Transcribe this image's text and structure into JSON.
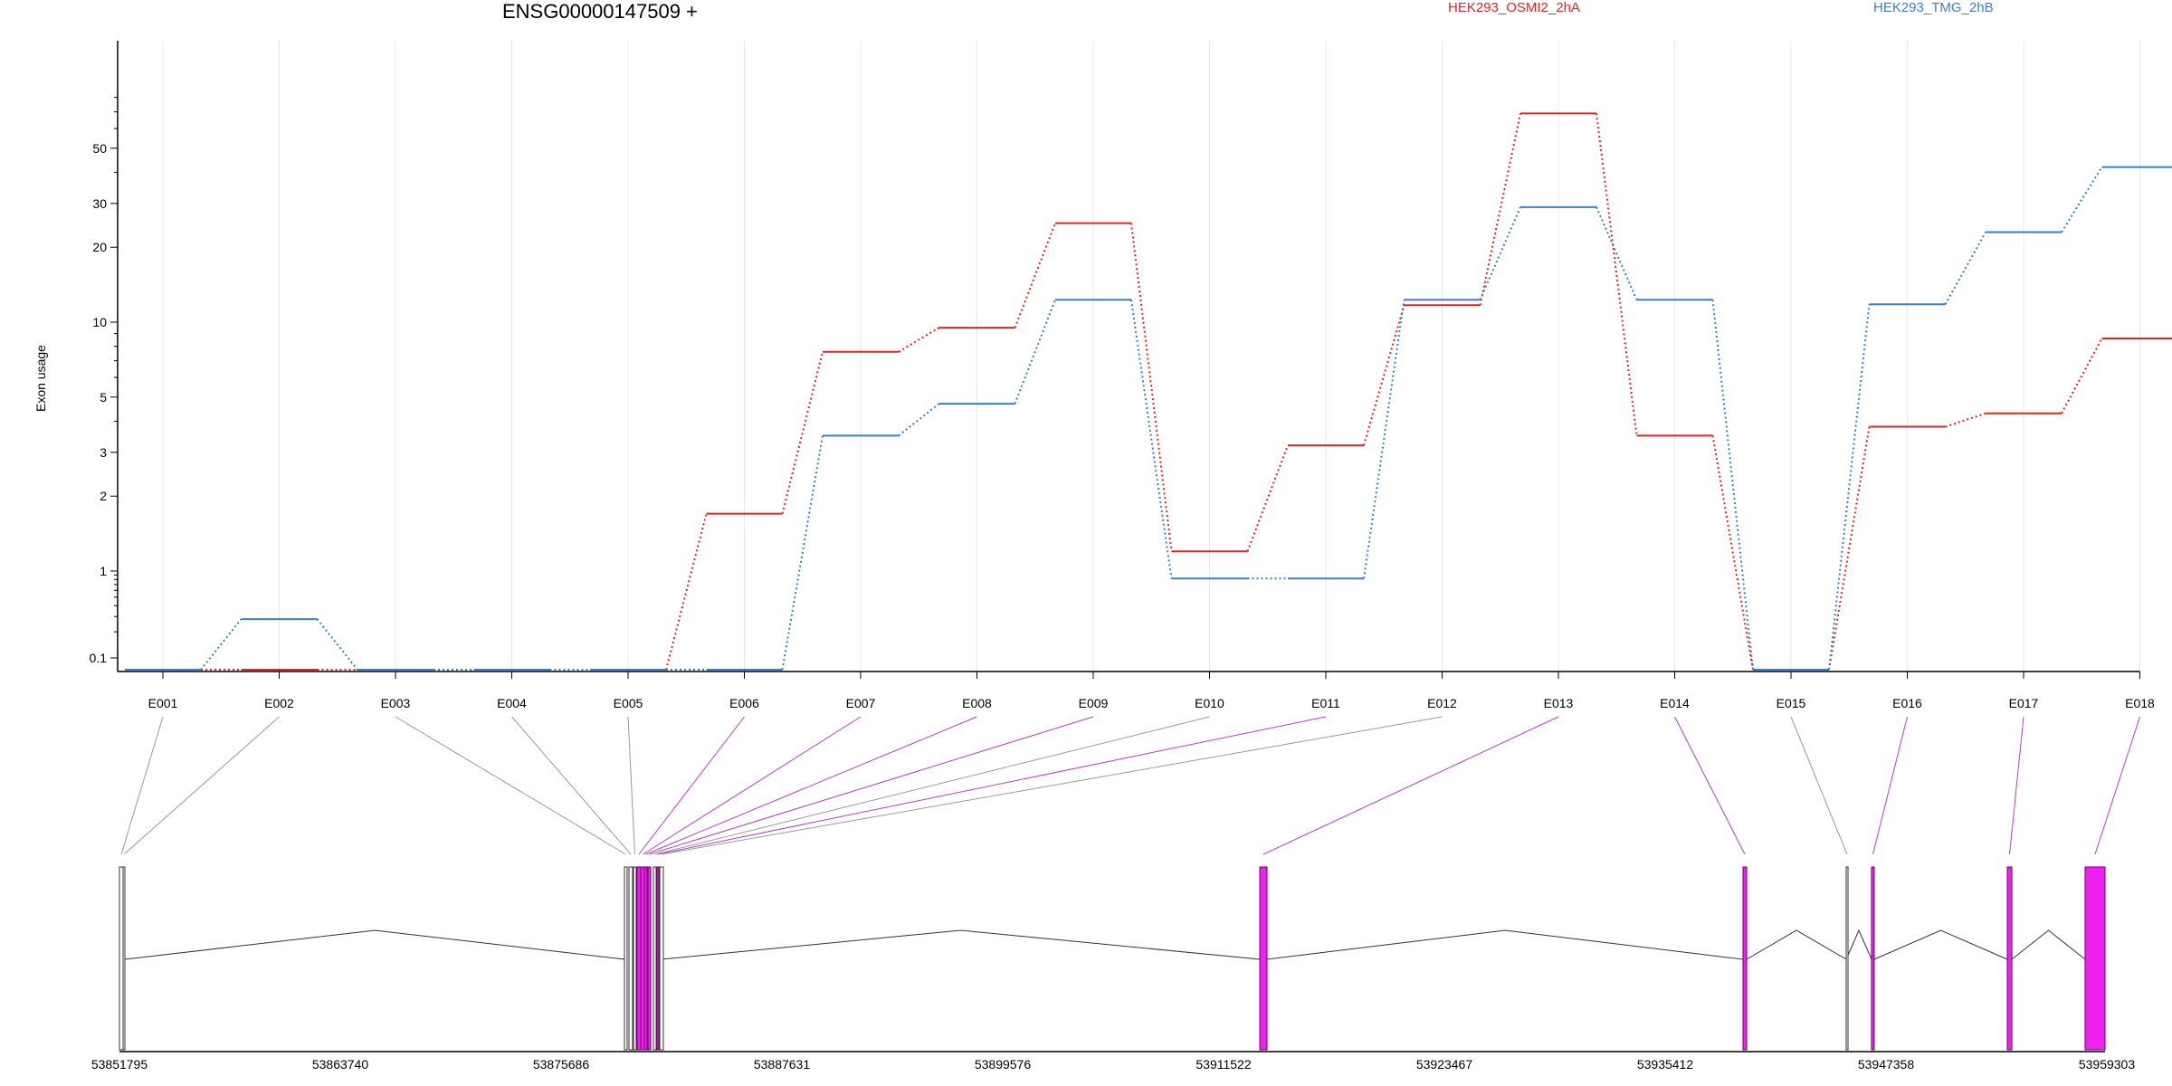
{
  "title": "ENSG00000147509 +",
  "ylabel": "Exon usage",
  "colors": {
    "series_a": "#d62728",
    "series_b": "#3a7fc1",
    "feature_on": "#ee22ee",
    "link_on": "#b040c0",
    "link_off": "#999999"
  },
  "chart_data": {
    "type": "line",
    "title": "ENSG00000147509 +",
    "ylabel": "Exon usage",
    "yscale": "log",
    "yticks": [
      "0.1",
      "1",
      "2",
      "3",
      "5",
      "10",
      "20",
      "30",
      "50"
    ],
    "grid": true,
    "legend": "top-right",
    "categories": [
      "E001",
      "E002",
      "E003",
      "E004",
      "E005",
      "E006",
      "E007",
      "E008",
      "E009",
      "E010",
      "E011",
      "E012",
      "E013",
      "E014",
      "E015",
      "E016",
      "E017",
      "E018"
    ],
    "series": [
      {
        "name": "HEK293_OSMI2_2hA",
        "color": "#d62728",
        "values": [
          0.08,
          0.08,
          0.08,
          0.08,
          0.08,
          1.7,
          7.6,
          9.5,
          25.0,
          1.2,
          3.2,
          11.7,
          69.0,
          3.5,
          0.08,
          3.8,
          4.3,
          8.6
        ]
      },
      {
        "name": "HEK293_TMG_2hB",
        "color": "#3a7fc1",
        "values": [
          0.08,
          0.28,
          0.08,
          0.08,
          0.08,
          0.08,
          3.5,
          4.7,
          12.3,
          0.82,
          0.82,
          12.3,
          29.0,
          12.3,
          0.08,
          11.8,
          23.0,
          42.0
        ]
      }
    ],
    "gene_model": {
      "coordinate_ticks": [
        "53851795",
        "53863740",
        "53875686",
        "53887631",
        "53899576",
        "53911522",
        "53923467",
        "53935412",
        "53947358",
        "53959303"
      ],
      "exons": [
        {
          "label": "E001",
          "significant": false
        },
        {
          "label": "E002",
          "significant": false
        },
        {
          "label": "E003",
          "significant": false
        },
        {
          "label": "E004",
          "significant": false
        },
        {
          "label": "E005",
          "significant": false
        },
        {
          "label": "E006",
          "significant": true
        },
        {
          "label": "E007",
          "significant": true
        },
        {
          "label": "E008",
          "significant": true
        },
        {
          "label": "E009",
          "significant": true
        },
        {
          "label": "E010",
          "significant": false
        },
        {
          "label": "E011",
          "significant": true
        },
        {
          "label": "E012",
          "significant": false
        },
        {
          "label": "E013",
          "significant": true
        },
        {
          "label": "E014",
          "significant": true
        },
        {
          "label": "E015",
          "significant": false
        },
        {
          "label": "E016",
          "significant": true
        },
        {
          "label": "E017",
          "significant": true
        },
        {
          "label": "E018",
          "significant": true
        }
      ]
    }
  }
}
